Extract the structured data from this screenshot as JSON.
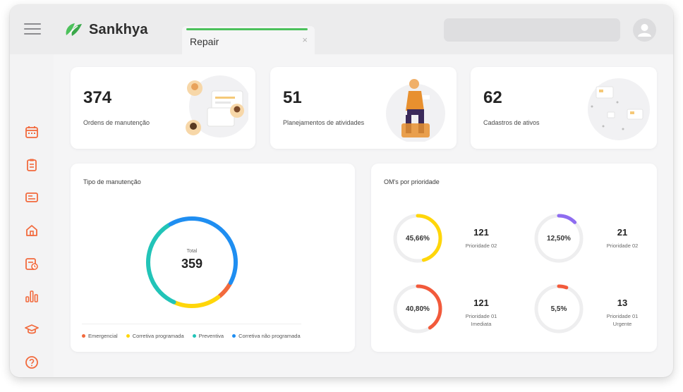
{
  "header": {
    "brand": "Sankhya",
    "tab_label": "Repair",
    "tab_close": "×"
  },
  "colors": {
    "brand_green": "#4cc15b",
    "accent_orange": "#f26a3d",
    "yellow": "#ffd60a",
    "teal": "#22c4b8",
    "blue": "#1f8ef1",
    "purple": "#8e6cf0",
    "red_orange": "#f25a3b"
  },
  "sidebar": {
    "items": [
      {
        "icon": "calendar-icon"
      },
      {
        "icon": "clipboard-icon"
      },
      {
        "icon": "document-icon"
      },
      {
        "icon": "home-icon"
      },
      {
        "icon": "schedule-icon"
      },
      {
        "icon": "bar-chart-icon"
      },
      {
        "icon": "graduation-cap-icon"
      },
      {
        "icon": "help-icon"
      }
    ]
  },
  "stats": [
    {
      "value": "374",
      "label": "Ordens de manutenção"
    },
    {
      "value": "51",
      "label": "Planejamentos de atividades"
    },
    {
      "value": "62",
      "label": "Cadastros de ativos"
    }
  ],
  "tipo": {
    "title": "Tipo de manutenção",
    "total_label": "Total",
    "total_value": "359"
  },
  "chart_data": {
    "type": "pie",
    "title": "Tipo de manutenção",
    "categories": [
      "Emergencial",
      "Corretiva programada",
      "Preventiva",
      "Corretiva não programada"
    ],
    "values": [
      23,
      61,
      126,
      149
    ],
    "colors": [
      "#f26a3d",
      "#ffd60a",
      "#22c4b8",
      "#1f8ef1"
    ],
    "legend": "bottom-left"
  },
  "prioridade": {
    "title": "OM's por prioridade",
    "items": [
      {
        "pct": "45,66%",
        "fraction": 0.4566,
        "count": "121",
        "label": "Prioridade 02",
        "color": "#ffd60a"
      },
      {
        "pct": "12,50%",
        "fraction": 0.125,
        "count": "21",
        "label": "Prioridade 02",
        "color": "#8e6cf0"
      },
      {
        "pct": "40,80%",
        "fraction": 0.408,
        "count": "121",
        "label": "Prioridade 01 Imediata",
        "color": "#f25a3b"
      },
      {
        "pct": "5,5%",
        "fraction": 0.055,
        "count": "13",
        "label": "Prioridade 01 Urgente",
        "color": "#f25a3b"
      }
    ]
  }
}
